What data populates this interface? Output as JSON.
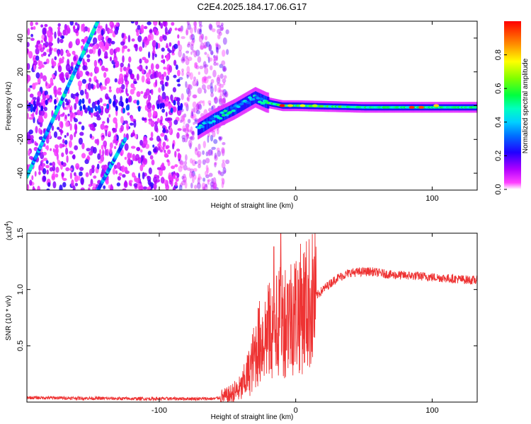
{
  "title": "C2E4.2025.184.17.06.G17",
  "chart_data": [
    {
      "type": "heatmap",
      "xlabel": "Height of straight line (km)",
      "ylabel": "Frequency (Hz)",
      "xlim": [
        -197,
        133
      ],
      "ylim": [
        -50,
        50
      ],
      "xticks": [
        -100,
        0,
        100
      ],
      "yticks": [
        -40,
        -20,
        0,
        20,
        40
      ],
      "grid": false,
      "colorbar": {
        "label": "Normalized spectral amplitude",
        "range": [
          0,
          1
        ],
        "ticks": [
          "0.0",
          "0.2",
          "0.4",
          "0.6",
          "0.8"
        ],
        "colors": [
          "#ffffff",
          "#ff00ff",
          "#8000ff",
          "#0000ff",
          "#00a0ff",
          "#00ffff",
          "#00ff80",
          "#00ff00",
          "#c0ff00",
          "#ffff00",
          "#ff8000",
          "#ff0000"
        ]
      },
      "features": {
        "noise_region_x": [
          -197,
          -60
        ],
        "main_trace": [
          [
            -72,
            -14
          ],
          [
            -60,
            -8
          ],
          [
            -45,
            -2
          ],
          [
            -30,
            5
          ],
          [
            -22,
            2
          ],
          [
            -10,
            0
          ],
          [
            0,
            0
          ],
          [
            50,
            -1
          ],
          [
            100,
            -1
          ],
          [
            133,
            -1
          ]
        ],
        "diagonal_line_1": [
          [
            -197,
            -42
          ],
          [
            -145,
            50
          ]
        ],
        "diagonal_line_2": [
          [
            -145,
            -50
          ],
          [
            -125,
            -20
          ]
        ]
      }
    },
    {
      "type": "line",
      "xlabel": "Height of straight line (km)",
      "ylabel": "SNR (10 * v/v)",
      "multiplier": "(x10",
      "multiplier_exp": "4",
      "multiplier_close": ")",
      "xlim": [
        -197,
        133
      ],
      "ylim": [
        0,
        1.5
      ],
      "xticks": [
        -100,
        0,
        100
      ],
      "yticks": [
        "0.5",
        "1.0",
        "1.5"
      ],
      "grid": false,
      "color": "#ee3333",
      "envelope": [
        {
          "x": -197,
          "y": 0.04
        },
        {
          "x": -120,
          "y": 0.03
        },
        {
          "x": -60,
          "y": 0.03
        },
        {
          "x": -50,
          "y": 0.05
        },
        {
          "x": -40,
          "y": 0.12
        },
        {
          "x": -33,
          "y": 0.3
        },
        {
          "x": -28,
          "y": 0.5
        },
        {
          "x": -22,
          "y": 0.6
        },
        {
          "x": -15,
          "y": 0.65
        },
        {
          "x": -8,
          "y": 0.75
        },
        {
          "x": 0,
          "y": 0.8
        },
        {
          "x": 10,
          "y": 0.88
        },
        {
          "x": 20,
          "y": 1.0
        },
        {
          "x": 30,
          "y": 1.1
        },
        {
          "x": 40,
          "y": 1.15
        },
        {
          "x": 55,
          "y": 1.16
        },
        {
          "x": 70,
          "y": 1.13
        },
        {
          "x": 90,
          "y": 1.12
        },
        {
          "x": 110,
          "y": 1.1
        },
        {
          "x": 133,
          "y": 1.08
        }
      ],
      "peak": {
        "x": -11,
        "y": 1.5
      }
    }
  ]
}
